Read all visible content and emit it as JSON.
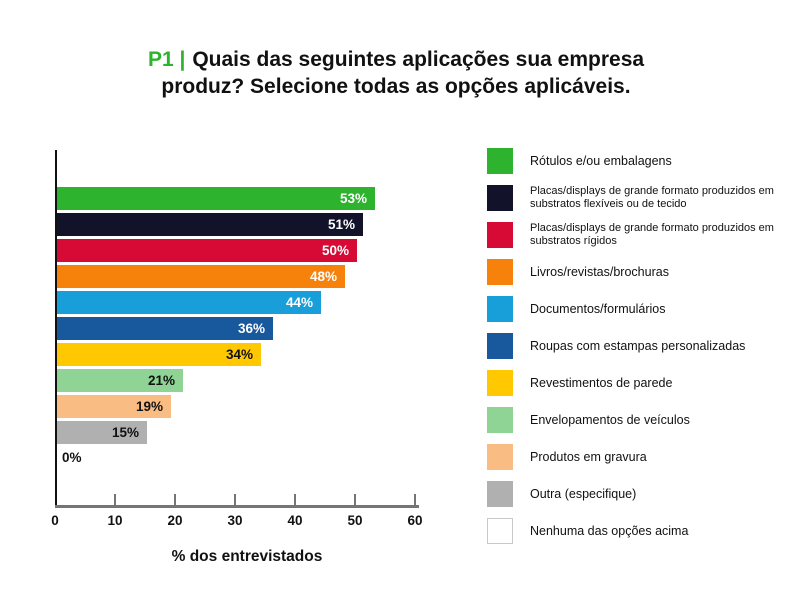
{
  "title": {
    "prefix": "P1 |",
    "line1": "Quais das seguintes aplicações sua empresa",
    "line2": "produz? Selecione todas as opções aplicáveis.",
    "accent_color": "#2db32e"
  },
  "chart_data": {
    "type": "bar",
    "orientation": "horizontal",
    "title": "P1 | Quais das seguintes aplicações sua empresa produz? Selecione todas as opções aplicáveis.",
    "xlabel": "% dos entrevistados",
    "xlim": [
      0,
      60
    ],
    "xticks": [
      0,
      10,
      20,
      30,
      40,
      50,
      60
    ],
    "categories": [
      "Rótulos e/ou embalagens",
      "Placas/displays de grande formato produzidos em substratos flexíveis ou de tecido",
      "Placas/displays de grande formato produzidos em substratos rígidos",
      "Livros/revistas/brochuras",
      "Documentos/formulários",
      "Roupas com estampas personalizadas",
      "Revestimentos de parede",
      "Envelopamentos de veículos",
      "Produtos em gravura",
      "Outra (especifique)",
      "Nenhuma das opções acima"
    ],
    "values": [
      53,
      51,
      50,
      48,
      44,
      36,
      34,
      21,
      19,
      15,
      0
    ],
    "value_labels": [
      "53%",
      "51%",
      "50%",
      "48%",
      "44%",
      "36%",
      "34%",
      "21%",
      "19%",
      "15%",
      "0%"
    ],
    "colors": [
      "#2db32e",
      "#12122b",
      "#d60a35",
      "#f6820c",
      "#189ed9",
      "#17599c",
      "#ffc800",
      "#8fd494",
      "#f9bc83",
      "#b0b0b0",
      "#ffffff"
    ],
    "value_label_colors": [
      "#ffffff",
      "#ffffff",
      "#ffffff",
      "#ffffff",
      "#ffffff",
      "#ffffff",
      "#111111",
      "#111111",
      "#111111",
      "#111111",
      "#111111"
    ],
    "grid": false,
    "legend_position": "right"
  },
  "legend": {
    "items": [
      {
        "label": "Rótulos e/ou embalagens",
        "color": "#2db32e"
      },
      {
        "label": "Placas/displays de grande formato produzidos em substratos flexíveis ou de tecido",
        "color": "#12122b"
      },
      {
        "label": "Placas/displays de grande formato produzidos em substratos rígidos",
        "color": "#d60a35"
      },
      {
        "label": "Livros/revistas/brochuras",
        "color": "#f6820c"
      },
      {
        "label": "Documentos/formulários",
        "color": "#189ed9"
      },
      {
        "label": "Roupas com estampas personalizadas",
        "color": "#17599c"
      },
      {
        "label": "Revestimentos de parede",
        "color": "#ffc800"
      },
      {
        "label": "Envelopamentos de veículos",
        "color": "#8fd494"
      },
      {
        "label": "Produtos em gravura",
        "color": "#f9bc83"
      },
      {
        "label": "Outra (especifique)",
        "color": "#b0b0b0"
      },
      {
        "label": "Nenhuma das opções acima",
        "color": "#ffffff"
      }
    ]
  }
}
